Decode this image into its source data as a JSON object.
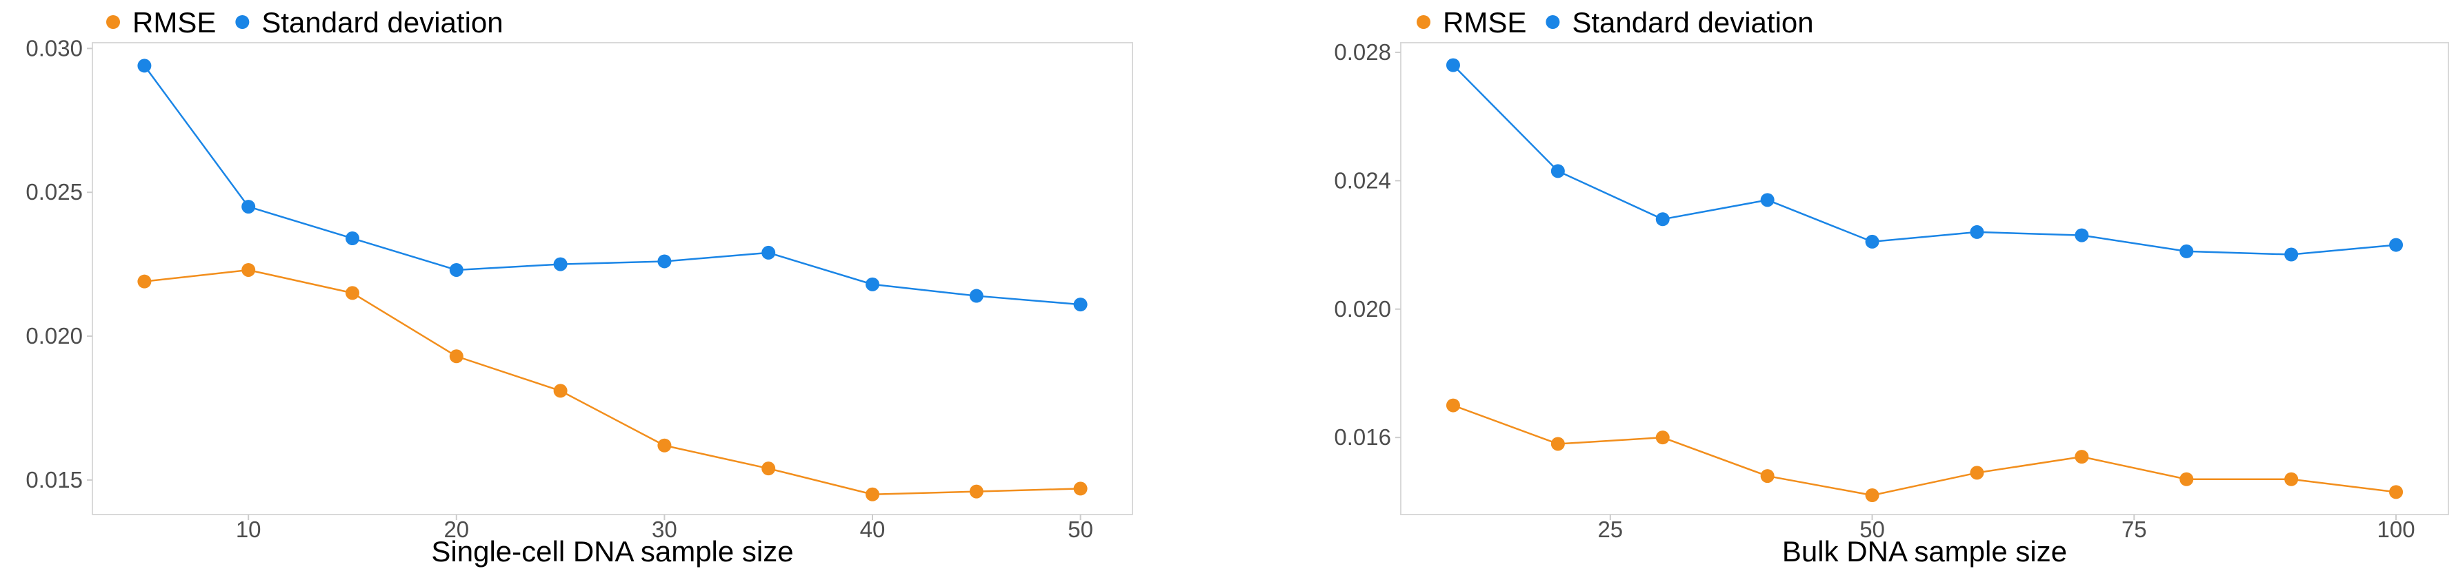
{
  "colors": {
    "RMSE": "#f28e1c",
    "Standard deviation": "#1a85e6"
  },
  "chart_data": [
    {
      "type": "line",
      "title": "",
      "xlabel": "Single-cell DNA sample size",
      "ylabel": "",
      "legend_position": "top-left",
      "grid": false,
      "xlim": [
        2.5,
        52.5
      ],
      "ylim": [
        0.0138,
        0.0302
      ],
      "x_ticks": [
        10,
        20,
        30,
        40,
        50
      ],
      "y_ticks": [
        0.015,
        0.02,
        0.025,
        0.03
      ],
      "x_tick_labels": [
        "10",
        "20",
        "30",
        "40",
        "50"
      ],
      "y_tick_labels": [
        "0.015",
        "0.020",
        "0.025",
        "0.030"
      ],
      "x": [
        5,
        10,
        15,
        20,
        25,
        30,
        35,
        40,
        45,
        50
      ],
      "series": [
        {
          "name": "RMSE",
          "values": [
            0.0219,
            0.0223,
            0.0215,
            0.0193,
            0.0181,
            0.0162,
            0.0154,
            0.0145,
            0.0146,
            0.0147
          ]
        },
        {
          "name": "Standard deviation",
          "values": [
            0.0294,
            0.0245,
            0.0234,
            0.0223,
            0.0225,
            0.0226,
            0.0229,
            0.0218,
            0.0214,
            0.0211
          ]
        }
      ]
    },
    {
      "type": "line",
      "title": "",
      "xlabel": "Bulk DNA sample size",
      "ylabel": "",
      "legend_position": "top-left",
      "grid": false,
      "xlim": [
        5,
        105
      ],
      "ylim": [
        0.0136,
        0.0283
      ],
      "x_ticks": [
        25,
        50,
        75,
        100
      ],
      "y_ticks": [
        0.016,
        0.02,
        0.024,
        0.028
      ],
      "x_tick_labels": [
        "25",
        "50",
        "75",
        "100"
      ],
      "y_tick_labels": [
        "0.016",
        "0.020",
        "0.024",
        "0.028"
      ],
      "x": [
        10,
        20,
        30,
        40,
        50,
        60,
        70,
        80,
        90,
        100
      ],
      "series": [
        {
          "name": "RMSE",
          "values": [
            0.017,
            0.0158,
            0.016,
            0.0148,
            0.0142,
            0.0149,
            0.0154,
            0.0147,
            0.0147,
            0.0143
          ]
        },
        {
          "name": "Standard deviation",
          "values": [
            0.0276,
            0.0243,
            0.0228,
            0.0234,
            0.0221,
            0.0224,
            0.0223,
            0.0218,
            0.0217,
            0.022
          ]
        }
      ]
    }
  ]
}
